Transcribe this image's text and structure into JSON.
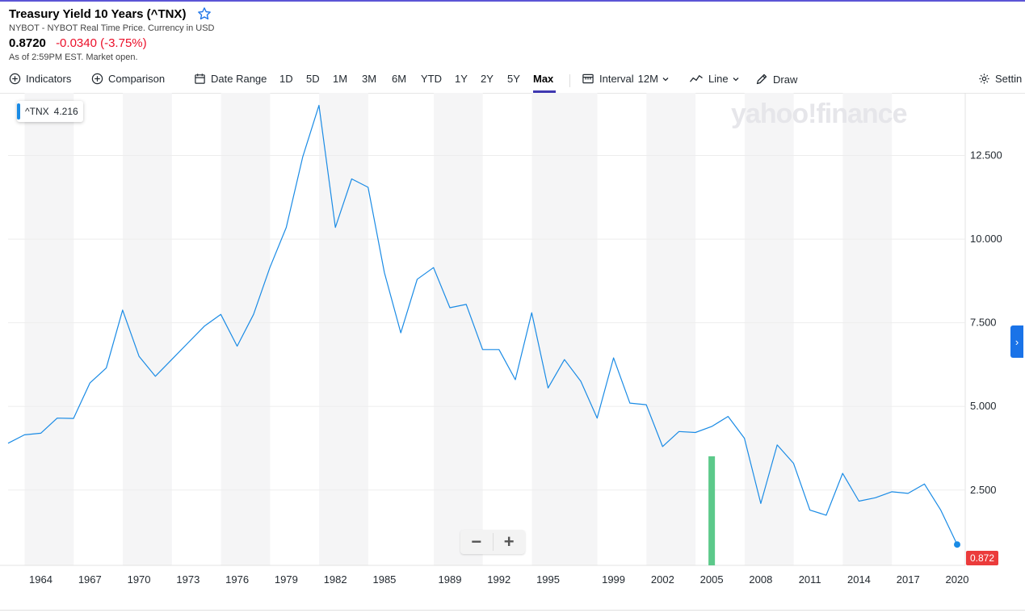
{
  "header": {
    "title": "Treasury Yield 10 Years (^TNX)",
    "star_icon": "star-outline-icon",
    "subtitle": "NYBOT - NYBOT Real Time Price. Currency in USD",
    "price": "0.8720",
    "change": "-0.0340 (-3.75%)",
    "as_of": "As of 2:59PM EST. Market open.",
    "colors": {
      "negative": "#eb0f29",
      "accent": "#3e38b0"
    }
  },
  "toolbar": {
    "indicators": "Indicators",
    "comparison": "Comparison",
    "date_range": "Date Range",
    "ranges": [
      "1D",
      "5D",
      "1M",
      "3M",
      "6M",
      "YTD",
      "1Y",
      "2Y",
      "5Y",
      "Max"
    ],
    "active_range": "Max",
    "interval_label": "Interval",
    "interval_value": "12M",
    "chart_type": "Line",
    "draw": "Draw",
    "settings": "Settin"
  },
  "legend": {
    "symbol": "^TNX",
    "value": "4.216"
  },
  "watermark": "yahoo!finance",
  "zoom": {
    "minus": "−",
    "plus": "+"
  },
  "right_tab_icon": "chevron-right-icon",
  "last_value_tag": "0.872",
  "chart_data": {
    "type": "line",
    "series": [
      {
        "values": [
          3.9,
          4.15,
          4.2,
          4.65,
          4.64,
          5.7,
          6.15,
          7.88,
          6.5,
          5.9,
          6.4,
          6.9,
          7.4,
          7.75,
          6.8,
          7.75,
          9.15,
          10.35,
          12.45,
          14.0,
          10.35,
          11.8,
          11.55,
          9.0,
          7.2,
          8.8,
          9.15,
          7.95,
          8.05,
          6.7,
          6.7,
          5.8,
          7.8,
          5.55,
          6.4,
          5.75,
          4.65,
          6.45,
          5.1,
          5.05,
          3.8,
          4.25,
          4.22,
          4.4,
          4.7,
          4.05,
          2.1,
          3.85,
          3.3,
          1.9,
          1.75,
          3.0,
          2.17,
          2.27,
          2.45,
          2.4,
          2.68,
          1.9,
          0.872
        ]
      }
    ],
    "x_start_year": 1962,
    "x_end_year": 2020,
    "x_tick_labels": [
      "1964",
      "1967",
      "1970",
      "1973",
      "1976",
      "1979",
      "1982",
      "1985",
      "1989",
      "1992",
      "1995",
      "1999",
      "2002",
      "2005",
      "2008",
      "2011",
      "2014",
      "2017",
      "2020"
    ],
    "y_tick_labels": [
      "12.500",
      "10.000",
      "7.500",
      "5.000",
      "2.500"
    ],
    "y_ticks": [
      12.5,
      10.0,
      7.5,
      5.0,
      2.5
    ],
    "ylim": [
      0.25,
      14.25
    ],
    "volume_bar": {
      "year": 2005,
      "color": "#5cc98a"
    },
    "line_color": "#1a8be5",
    "grid": true
  }
}
